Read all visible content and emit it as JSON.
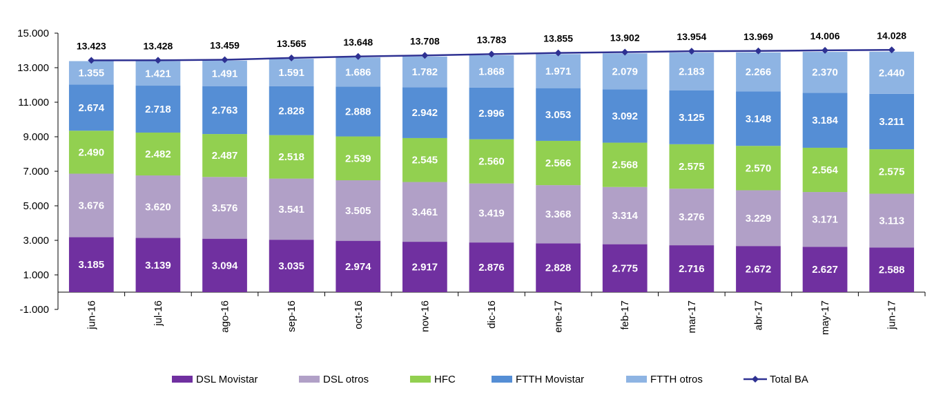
{
  "chart_data": {
    "type": "bar",
    "stacked": true,
    "title": "",
    "xlabel": "",
    "ylabel": "",
    "ylim": [
      -1000,
      15000
    ],
    "yticks": [
      -1000,
      1000,
      3000,
      5000,
      7000,
      9000,
      11000,
      13000,
      15000
    ],
    "ytick_labels": [
      "-1.000",
      "1.000",
      "3.000",
      "5.000",
      "7.000",
      "9.000",
      "11.000",
      "13.000",
      "15.000"
    ],
    "grid": false,
    "legend_position": "bottom",
    "categories": [
      "jun-16",
      "jul-16",
      "ago-16",
      "sep-16",
      "oct-16",
      "nov-16",
      "dic-16",
      "ene-17",
      "feb-17",
      "mar-17",
      "abr-17",
      "may-17",
      "jun-17"
    ],
    "series": [
      {
        "name": "DSL Movistar",
        "color": "#7030a0",
        "values": [
          3185,
          3139,
          3094,
          3035,
          2974,
          2917,
          2876,
          2828,
          2775,
          2716,
          2672,
          2627,
          2588
        ],
        "labels": [
          "3.185",
          "3.139",
          "3.094",
          "3.035",
          "2.974",
          "2.917",
          "2.876",
          "2.828",
          "2.775",
          "2.716",
          "2.672",
          "2.627",
          "2.588"
        ]
      },
      {
        "name": "DSL otros",
        "color": "#b1a0c7",
        "values": [
          3676,
          3620,
          3576,
          3541,
          3505,
          3461,
          3419,
          3368,
          3314,
          3276,
          3229,
          3171,
          3113
        ],
        "labels": [
          "3.676",
          "3.620",
          "3.576",
          "3.541",
          "3.505",
          "3.461",
          "3.419",
          "3.368",
          "3.314",
          "3.276",
          "3.229",
          "3.171",
          "3.113"
        ]
      },
      {
        "name": "HFC",
        "color": "#92d050",
        "values": [
          2490,
          2482,
          2487,
          2518,
          2539,
          2545,
          2560,
          2566,
          2568,
          2575,
          2570,
          2564,
          2575
        ],
        "labels": [
          "2.490",
          "2.482",
          "2.487",
          "2.518",
          "2.539",
          "2.545",
          "2.560",
          "2.566",
          "2.568",
          "2.575",
          "2.570",
          "2.564",
          "2.575"
        ]
      },
      {
        "name": "FTTH Movistar",
        "color": "#558ed5",
        "values": [
          2674,
          2718,
          2763,
          2828,
          2888,
          2942,
          2996,
          3053,
          3092,
          3125,
          3148,
          3184,
          3211
        ],
        "labels": [
          "2.674",
          "2.718",
          "2.763",
          "2.828",
          "2.888",
          "2.942",
          "2.996",
          "3.053",
          "3.092",
          "3.125",
          "3.148",
          "3.184",
          "3.211"
        ]
      },
      {
        "name": "FTTH otros",
        "color": "#8eb4e3",
        "values": [
          1355,
          1421,
          1491,
          1591,
          1686,
          1782,
          1868,
          1971,
          2079,
          2183,
          2266,
          2370,
          2440
        ],
        "labels": [
          "1.355",
          "1.421",
          "1.491",
          "1.591",
          "1.686",
          "1.782",
          "1.868",
          "1.971",
          "2.079",
          "2.183",
          "2.266",
          "2.370",
          "2.440"
        ]
      }
    ],
    "line_series": {
      "name": "Total BA",
      "color": "#2e3192",
      "values": [
        13423,
        13428,
        13459,
        13565,
        13648,
        13708,
        13783,
        13855,
        13902,
        13954,
        13969,
        14006,
        14028
      ],
      "labels": [
        "13.423",
        "13.428",
        "13.459",
        "13.565",
        "13.648",
        "13.708",
        "13.783",
        "13.855",
        "13.902",
        "13.954",
        "13.969",
        "14.006",
        "14.028"
      ]
    }
  }
}
